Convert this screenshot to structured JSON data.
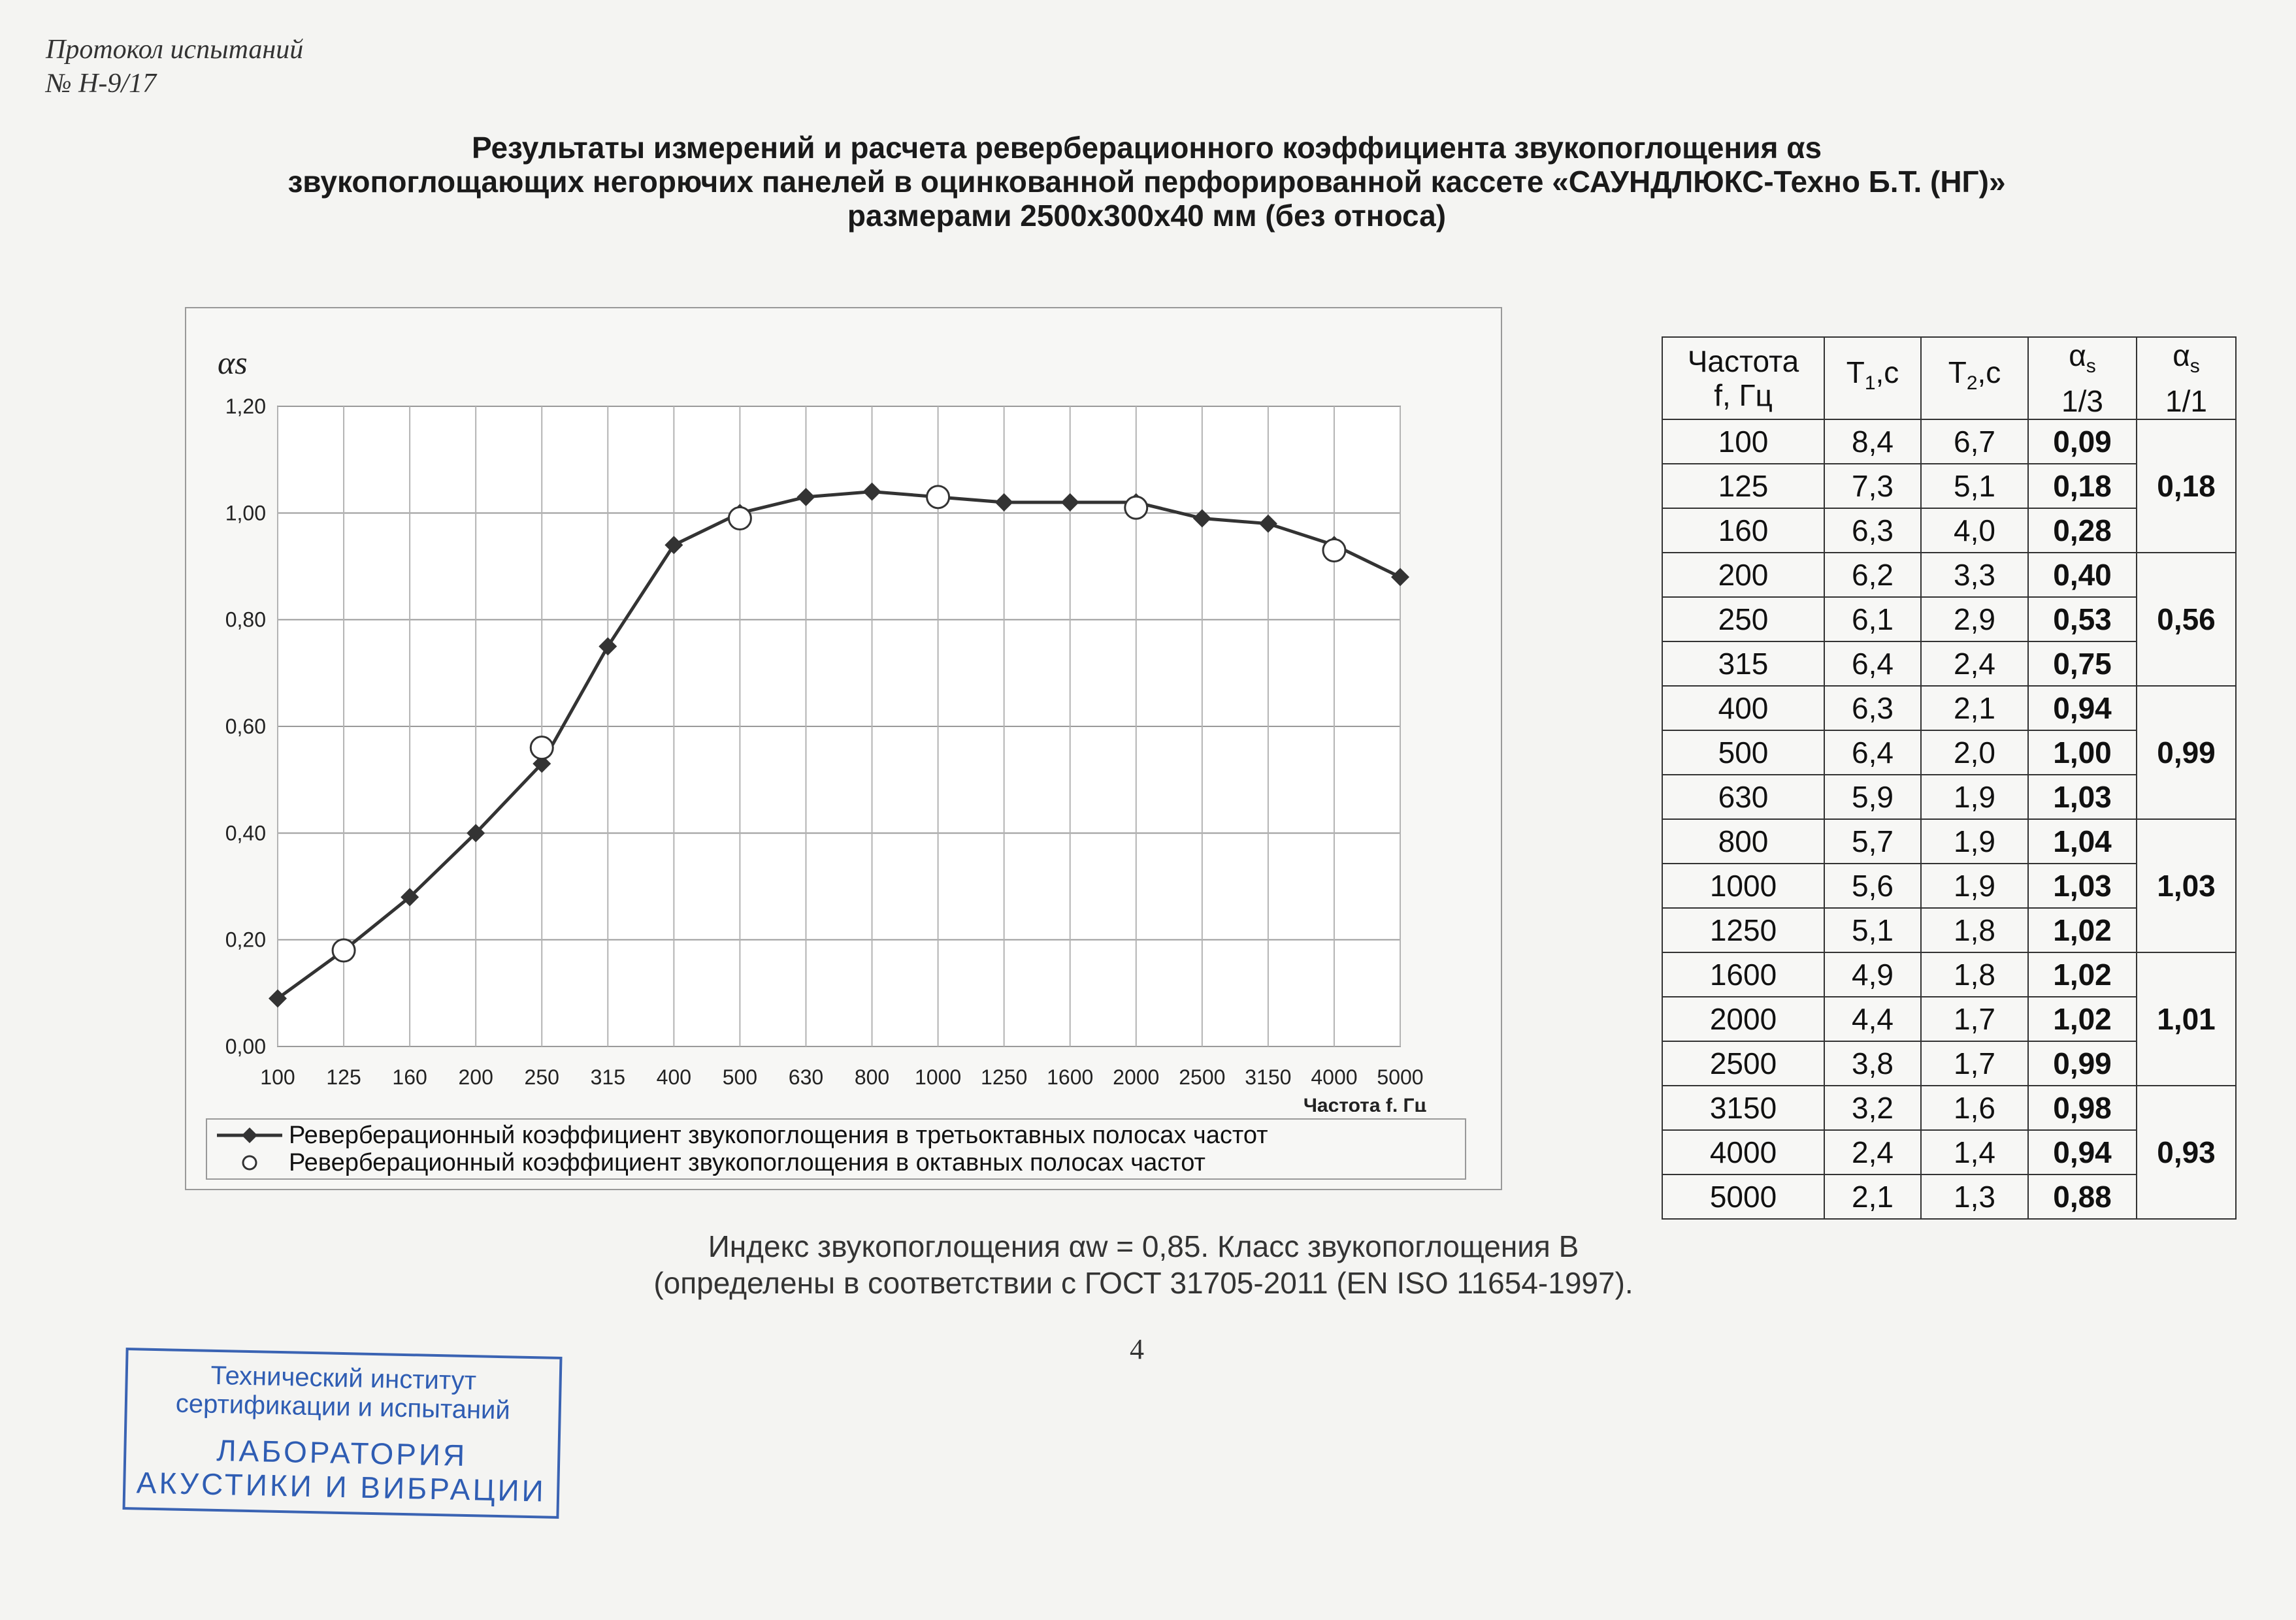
{
  "header_note": [
    "Протокол испытаний",
    "№ Н-9/17"
  ],
  "title_lines": [
    "Результаты измерений и расчета реверберационного коэффициента звукопоглощения  αs",
    "звукопоглощающих негорючих  панелей в оцинкованной перфорированной кассете  «САУНДЛЮКС-Техно Б.Т. (НГ)»",
    "размерами 2500х300х40 мм (без относа)"
  ],
  "chart_data": {
    "type": "line",
    "ylabel": "αs",
    "xlabel": "Частота f, Гц",
    "categories": [
      "100",
      "125",
      "160",
      "200",
      "250",
      "315",
      "400",
      "500",
      "630",
      "800",
      "1000",
      "1250",
      "1600",
      "2000",
      "2500",
      "3150",
      "4000",
      "5000"
    ],
    "ylim": [
      0,
      1.2
    ],
    "yticks": [
      "0,00",
      "0,20",
      "0,40",
      "0,60",
      "0,80",
      "1,00",
      "1,20"
    ],
    "grid": true,
    "legend_position": "bottom",
    "series": [
      {
        "name": "Реверберационный коэффициент звукопоглощения в третьоктавных полосах частот",
        "marker": "diamond",
        "color": "#333333",
        "values": [
          0.09,
          0.18,
          0.28,
          0.4,
          0.53,
          0.75,
          0.94,
          1.0,
          1.03,
          1.04,
          1.03,
          1.02,
          1.02,
          1.02,
          0.99,
          0.98,
          0.94,
          0.88
        ]
      },
      {
        "name": "Реверберационный коэффициент звукопоглощения в октавных полосах частот",
        "marker": "circle-open",
        "color": "#333333",
        "x": [
          "125",
          "250",
          "500",
          "1000",
          "2000",
          "4000"
        ],
        "values": [
          0.18,
          0.56,
          0.99,
          1.03,
          1.01,
          0.93
        ]
      }
    ]
  },
  "table": {
    "headers": [
      "Частота f, Гц",
      "T1,с",
      "T2,с",
      "αs 1/3",
      "αs 1/1"
    ],
    "rows": [
      [
        "100",
        "8,4",
        "6,7",
        "0,09"
      ],
      [
        "125",
        "7,3",
        "5,1",
        "0,18"
      ],
      [
        "160",
        "6,3",
        "4,0",
        "0,28"
      ],
      [
        "200",
        "6,2",
        "3,3",
        "0,40"
      ],
      [
        "250",
        "6,1",
        "2,9",
        "0,53"
      ],
      [
        "315",
        "6,4",
        "2,4",
        "0,75"
      ],
      [
        "400",
        "6,3",
        "2,1",
        "0,94"
      ],
      [
        "500",
        "6,4",
        "2,0",
        "1,00"
      ],
      [
        "630",
        "5,9",
        "1,9",
        "1,03"
      ],
      [
        "800",
        "5,7",
        "1,9",
        "1,04"
      ],
      [
        "1000",
        "5,6",
        "1,9",
        "1,03"
      ],
      [
        "1250",
        "5,1",
        "1,8",
        "1,02"
      ],
      [
        "1600",
        "4,9",
        "1,8",
        "1,02"
      ],
      [
        "2000",
        "4,4",
        "1,7",
        "1,02"
      ],
      [
        "2500",
        "3,8",
        "1,7",
        "0,99"
      ],
      [
        "3150",
        "3,2",
        "1,6",
        "0,98"
      ],
      [
        "4000",
        "2,4",
        "1,4",
        "0,94"
      ],
      [
        "5000",
        "2,1",
        "1,3",
        "0,88"
      ]
    ],
    "octave_values": [
      "0,18",
      "0,56",
      "0,99",
      "1,03",
      "1,01",
      "0,93"
    ]
  },
  "index_lines": [
    "Индекс звукопоглощения αw = 0,85. Класс звукопоглощения  В",
    "(определены в соответствии с ГОСТ 31705-2011 (EN ISO 11654-1997)."
  ],
  "page_number": "4",
  "stamp": {
    "line1": "Технический институт",
    "line2": "сертификации и испытаний",
    "line3": "ЛАБОРАТОРИЯ",
    "line4": "АКУСТИКИ И ВИБРАЦИИ"
  }
}
